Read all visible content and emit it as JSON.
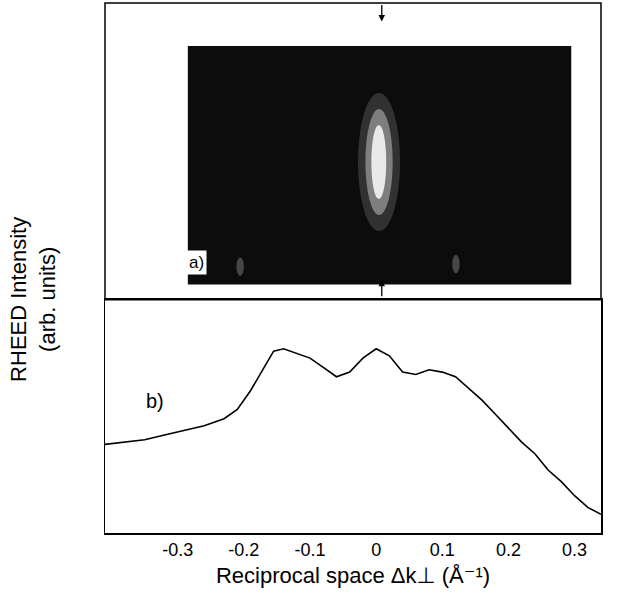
{
  "chart_data": {
    "type": "line",
    "xlabel": "Reciprocal space Δk⊥ (Å⁻¹)",
    "ylabel": "RHEED Intensity (arb. units)",
    "annotations": [
      "a)",
      "b)"
    ],
    "x": [
      -0.41,
      -0.38,
      -0.35,
      -0.32,
      -0.29,
      -0.26,
      -0.23,
      -0.21,
      -0.19,
      -0.17,
      -0.155,
      -0.14,
      -0.12,
      -0.1,
      -0.08,
      -0.06,
      -0.04,
      -0.02,
      0,
      0.02,
      0.04,
      0.06,
      0.08,
      0.1,
      0.12,
      0.14,
      0.16,
      0.18,
      0.2,
      0.22,
      0.24,
      0.26,
      0.28,
      0.3,
      0.32,
      0.34
    ],
    "values": [
      3.8,
      3.9,
      4.0,
      4.2,
      4.4,
      4.6,
      4.9,
      5.3,
      6.1,
      7.1,
      7.8,
      7.9,
      7.7,
      7.5,
      7.1,
      6.7,
      6.9,
      7.5,
      7.9,
      7.6,
      6.9,
      6.8,
      7.0,
      6.9,
      6.7,
      6.2,
      5.7,
      5.1,
      4.5,
      3.9,
      3.4,
      2.7,
      2.2,
      1.6,
      1.1,
      0.8
    ],
    "color": "#000000",
    "xlim": [
      -0.41,
      0.34
    ],
    "xticks": [
      -0.3,
      -0.2,
      -0.1,
      0,
      0.1,
      0.2,
      0.3
    ],
    "ylim": [
      0,
      10
    ],
    "tick_labels": "x",
    "grid": false
  }
}
